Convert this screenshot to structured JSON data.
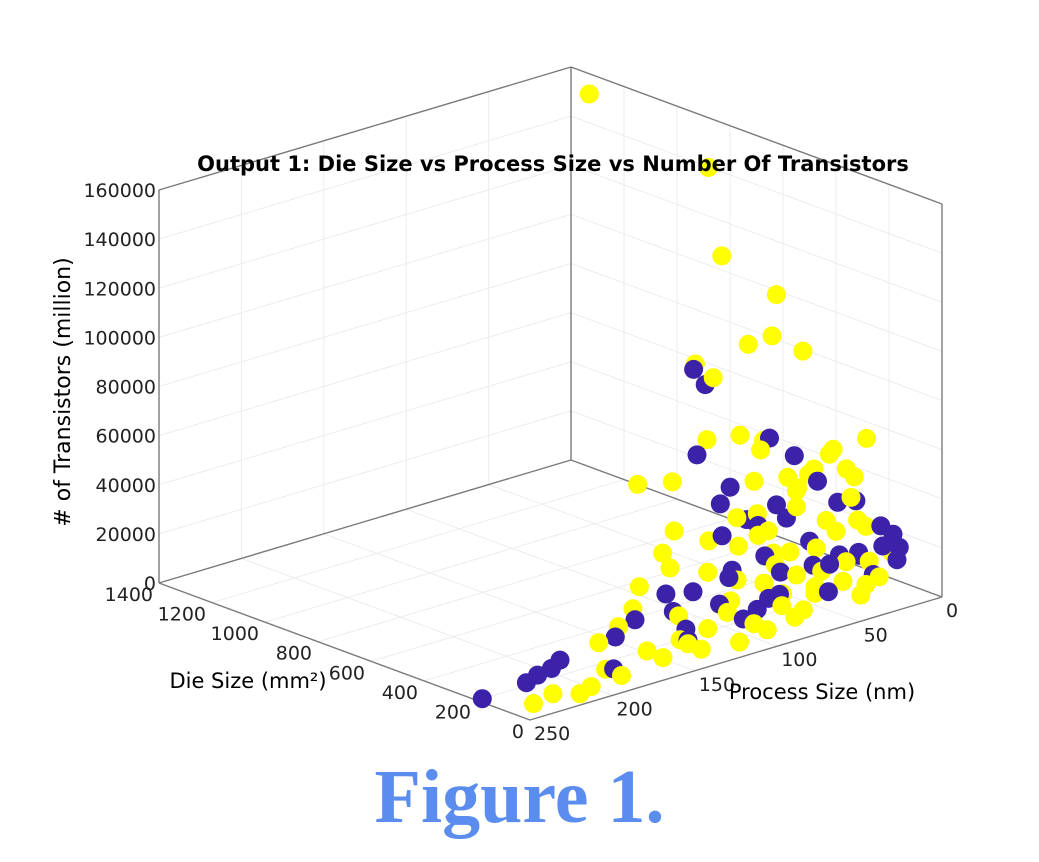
{
  "caption": "Figure 1.",
  "colors": {
    "caption": "#5b8def",
    "series_a": "#3b22a8",
    "series_b": "#ffff00",
    "axis": "#7a7a7a",
    "grid": "#ececec"
  },
  "chart_data": {
    "type": "scatter",
    "projection": "3d",
    "title": "Output 1: Die Size vs Process Size vs Number Of Transistors",
    "xlabel": "Process Size (nm)",
    "ylabel": "Die Size (mm²)",
    "zlabel": "# of Transistors (million)",
    "xlim": [
      0,
      250
    ],
    "ylim": [
      0,
      1400
    ],
    "zlim": [
      0,
      160000
    ],
    "xticks": [
      "0",
      "50",
      "100",
      "150",
      "200",
      "250"
    ],
    "yticks": [
      "0",
      "200",
      "400",
      "600",
      "800",
      "1000",
      "1200",
      "1400"
    ],
    "zticks": [
      "0",
      "20000",
      "40000",
      "60000",
      "80000",
      "100000",
      "120000",
      "140000",
      "160000"
    ],
    "grid": true,
    "series": [
      {
        "color": "#3b22a8",
        "points": [
          [
            250,
            180,
            1500
          ],
          [
            220,
            200,
            1200
          ],
          [
            210,
            220,
            1500
          ],
          [
            200,
            230,
            1800
          ],
          [
            190,
            260,
            2000
          ],
          [
            180,
            120,
            2000
          ],
          [
            150,
            300,
            1800
          ],
          [
            130,
            150,
            2500
          ],
          [
            130,
            350,
            2800
          ],
          [
            110,
            330,
            3000
          ],
          [
            90,
            280,
            4000
          ],
          [
            90,
            380,
            5000
          ],
          [
            80,
            200,
            3000
          ],
          [
            65,
            400,
            5000
          ],
          [
            55,
            450,
            4000
          ],
          [
            45,
            330,
            6000
          ],
          [
            40,
            420,
            8000
          ],
          [
            30,
            300,
            7000
          ],
          [
            28,
            250,
            9000
          ],
          [
            22,
            600,
            12000
          ],
          [
            16,
            400,
            10000
          ],
          [
            16,
            700,
            20000
          ],
          [
            14,
            300,
            8000
          ],
          [
            14,
            500,
            15000
          ],
          [
            12,
            550,
            18000
          ],
          [
            10,
            250,
            9000
          ],
          [
            8,
            120,
            12000
          ],
          [
            7,
            180,
            15000
          ],
          [
            7,
            350,
            26000
          ],
          [
            7,
            850,
            54000
          ],
          [
            5,
            130,
            16000
          ],
          [
            5,
            200,
            22000
          ],
          [
            5,
            620,
            41000
          ],
          [
            4,
            160,
            20000
          ],
          [
            4,
            300,
            28000
          ],
          [
            28,
            520,
            14000
          ],
          [
            40,
            180,
            3000
          ],
          [
            60,
            240,
            3500
          ],
          [
            90,
            190,
            1500
          ],
          [
            120,
            220,
            2200
          ],
          [
            16,
            160,
            6000
          ],
          [
            12,
            240,
            11000
          ],
          [
            8,
            420,
            32000
          ],
          [
            6,
            520,
            38000
          ],
          [
            6,
            900,
            58000
          ],
          [
            30,
            650,
            18000
          ],
          [
            20,
            800,
            30000
          ],
          [
            45,
            550,
            12000
          ],
          [
            65,
            250,
            2500
          ],
          [
            100,
            420,
            4500
          ]
        ]
      },
      {
        "color": "#ffff00",
        "points": [
          [
            5,
            1300,
            154000
          ],
          [
            5,
            850,
            142000
          ],
          [
            5,
            800,
            108000
          ],
          [
            4,
            600,
            100000
          ],
          [
            5,
            610,
            83000
          ],
          [
            4,
            500,
            81000
          ],
          [
            5,
            700,
            76000
          ],
          [
            4,
            260,
            55000
          ],
          [
            5,
            380,
            46000
          ],
          [
            7,
            820,
            58000
          ],
          [
            5,
            900,
            60000
          ],
          [
            4,
            400,
            43000
          ],
          [
            5,
            330,
            40000
          ],
          [
            5,
            300,
            38000
          ],
          [
            7,
            440,
            36000
          ],
          [
            7,
            630,
            40000
          ],
          [
            7,
            460,
            33000
          ],
          [
            7,
            300,
            30000
          ],
          [
            12,
            610,
            38000
          ],
          [
            12,
            470,
            28000
          ],
          [
            14,
            800,
            35000
          ],
          [
            10,
            520,
            30000
          ],
          [
            16,
            450,
            22000
          ],
          [
            16,
            610,
            26000
          ],
          [
            16,
            300,
            18000
          ],
          [
            14,
            350,
            20000
          ],
          [
            22,
            560,
            16000
          ],
          [
            28,
            600,
            14000
          ],
          [
            28,
            520,
            10000
          ],
          [
            28,
            400,
            8000
          ],
          [
            28,
            280,
            5000
          ],
          [
            28,
            200,
            4000
          ],
          [
            40,
            520,
            8000
          ],
          [
            40,
            380,
            6000
          ],
          [
            40,
            300,
            5000
          ],
          [
            40,
            230,
            3000
          ],
          [
            45,
            200,
            2500
          ],
          [
            55,
            330,
            3500
          ],
          [
            55,
            260,
            2000
          ],
          [
            65,
            480,
            4000
          ],
          [
            65,
            200,
            1500
          ],
          [
            80,
            300,
            2500
          ],
          [
            90,
            250,
            1800
          ],
          [
            90,
            150,
            1200
          ],
          [
            110,
            200,
            1200
          ],
          [
            110,
            310,
            2000
          ],
          [
            130,
            150,
            1000
          ],
          [
            130,
            100,
            800
          ],
          [
            150,
            180,
            900
          ],
          [
            150,
            120,
            600
          ],
          [
            180,
            90,
            500
          ],
          [
            180,
            150,
            700
          ],
          [
            30,
            450,
            6000
          ],
          [
            35,
            800,
            22000
          ],
          [
            20,
            350,
            10000
          ],
          [
            50,
            700,
            9000
          ],
          [
            65,
            650,
            5000
          ],
          [
            40,
            900,
            18000
          ],
          [
            18,
            250,
            8000
          ],
          [
            12,
            200,
            9000
          ],
          [
            8,
            500,
            25000
          ],
          [
            6,
            250,
            20000
          ],
          [
            10,
            700,
            40000
          ],
          [
            25,
            500,
            12000
          ],
          [
            45,
            600,
            8000
          ],
          [
            3,
            170,
            12000
          ],
          [
            3,
            300,
            20000
          ],
          [
            14,
            150,
            5000
          ],
          [
            22,
            150,
            3500
          ],
          [
            30,
            120,
            2000
          ],
          [
            90,
            100,
            700
          ],
          [
            110,
            80,
            500
          ],
          [
            130,
            180,
            1500
          ],
          [
            70,
            120,
            1000
          ],
          [
            60,
            400,
            3000
          ],
          [
            220,
            100,
            700
          ],
          [
            235,
            80,
            500
          ],
          [
            200,
            80,
            400
          ],
          [
            210,
            60,
            300
          ],
          [
            160,
            300,
            1500
          ],
          [
            140,
            350,
            2000
          ],
          [
            120,
            420,
            2500
          ],
          [
            100,
            520,
            3500
          ],
          [
            75,
            560,
            4500
          ],
          [
            60,
            150,
            800
          ]
        ]
      }
    ]
  }
}
